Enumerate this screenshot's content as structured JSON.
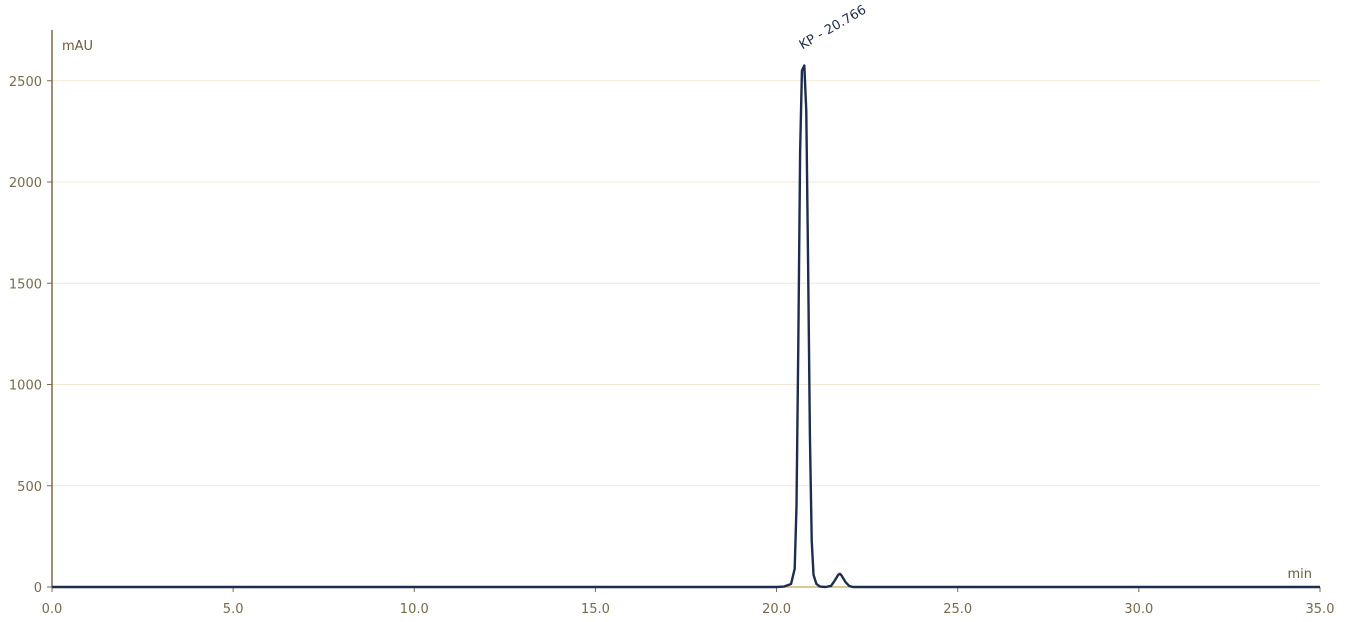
{
  "chart_data": {
    "type": "line",
    "title": "",
    "xlabel": "min",
    "ylabel": "mAU",
    "xlim": [
      0,
      35
    ],
    "ylim": [
      0,
      2800
    ],
    "x_ticks": [
      0,
      5,
      10,
      15,
      20,
      25,
      30,
      35
    ],
    "x_tick_labels": [
      "0.0",
      "5.0",
      "10.0",
      "15.0",
      "20.0",
      "25.0",
      "30.0",
      "35.0"
    ],
    "y_ticks": [
      0,
      500,
      1000,
      1500,
      2000,
      2500
    ],
    "y_tick_labels": [
      "0",
      "500",
      "1000",
      "1500",
      "2000",
      "2500"
    ],
    "grid": "horizontal",
    "legend": "none",
    "colors": {
      "trace": "#1e2d4f",
      "axis": "#7a6a4a",
      "grid": "#efe8d4",
      "baseline": "#c9a35a"
    },
    "series": [
      {
        "x": [
          0,
          20.0,
          20.2,
          20.4,
          20.5,
          20.55,
          20.6,
          20.65,
          20.7,
          20.766,
          20.82,
          20.87,
          20.92,
          20.97,
          21.02,
          21.1,
          21.2,
          21.35,
          21.5,
          21.6,
          21.7,
          21.75,
          21.8,
          21.9,
          22.0,
          22.1,
          35
        ],
        "y": [
          0,
          0,
          2,
          15,
          90,
          400,
          1200,
          2150,
          2550,
          2575,
          2350,
          1600,
          750,
          230,
          60,
          15,
          2,
          0,
          5,
          30,
          60,
          65,
          55,
          25,
          6,
          0,
          0
        ]
      }
    ],
    "annotations": [
      {
        "text": "KP - 20.766",
        "x": 20.766,
        "y": 2575
      }
    ]
  }
}
